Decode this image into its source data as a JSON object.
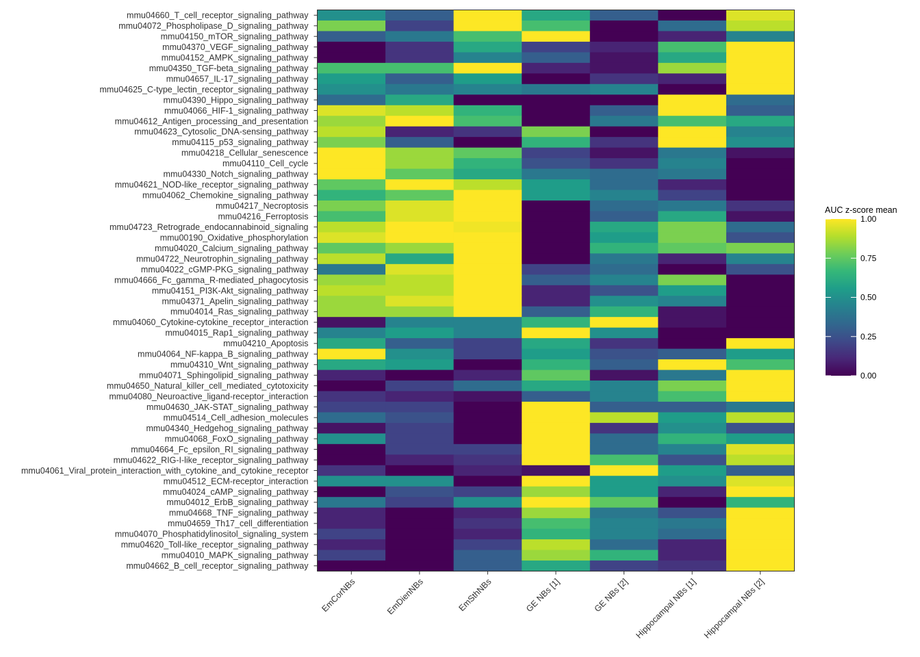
{
  "chart_data": {
    "type": "heatmap",
    "title": "",
    "xlabel": "",
    "ylabel": "",
    "columns": [
      "EmCorNBs",
      "EmDienNBs",
      "EmSthNBs",
      "GE NBs [1]",
      "GE NBs [2]",
      "Hippocampal NBs [1]",
      "Hippocampal NBs [2]"
    ],
    "rows": [
      "mmu04660_T_cell_receptor_signaling_pathway",
      "mmu04072_Phospholipase_D_signaling_pathway",
      "mmu04150_mTOR_signaling_pathway",
      "mmu04370_VEGF_signaling_pathway",
      "mmu04152_AMPK_signaling_pathway",
      "mmu04350_TGF-beta_signaling_pathway",
      "mmu04657_IL-17_signaling_pathway",
      "mmu04625_C-type_lectin_receptor_signaling_pathway",
      "mmu04390_Hippo_signaling_pathway",
      "mmu04066_HIF-1_signaling_pathway",
      "mmu04612_Antigen_processing_and_presentation",
      "mmu04623_Cytosolic_DNA-sensing_pathway",
      "mmu04115_p53_signaling_pathway",
      "mmu04218_Cellular_senescence",
      "mmu04110_Cell_cycle",
      "mmu04330_Notch_signaling_pathway",
      "mmu04621_NOD-like_receptor_signaling_pathway",
      "mmu04062_Chemokine_signaling_pathway",
      "mmu04217_Necroptosis",
      "mmu04216_Ferroptosis",
      "mmu04723_Retrograde_endocannabinoid_signaling",
      "mmu00190_Oxidative_phosphorylation",
      "mmu04020_Calcium_signaling_pathway",
      "mmu04722_Neurotrophin_signaling_pathway",
      "mmu04022_cGMP-PKG_signaling_pathway",
      "mmu04666_Fc_gamma_R-mediated_phagocytosis",
      "mmu04151_PI3K-Akt_signaling_pathway",
      "mmu04371_Apelin_signaling_pathway",
      "mmu04014_Ras_signaling_pathway",
      "mmu04060_Cytokine-cytokine_receptor_interaction",
      "mmu04015_Rap1_signaling_pathway",
      "mmu04210_Apoptosis",
      "mmu04064_NF-kappa_B_signaling_pathway",
      "mmu04310_Wnt_signaling_pathway",
      "mmu04071_Sphingolipid_signaling_pathway",
      "mmu04650_Natural_killer_cell_mediated_cytotoxicity",
      "mmu04080_Neuroactive_ligand-receptor_interaction",
      "mmu04630_JAK-STAT_signaling_pathway",
      "mmu04514_Cell_adhesion_molecules",
      "mmu04340_Hedgehog_signaling_pathway",
      "mmu04068_FoxO_signaling_pathway",
      "mmu04664_Fc_epsilon_RI_signaling_pathway",
      "mmu04622_RIG-I-like_receptor_signaling_pathway",
      "mmu04061_Viral_protein_interaction_with_cytokine_and_cytokine_receptor",
      "mmu04512_ECM-receptor_interaction",
      "mmu04024_cAMP_signaling_pathway",
      "mmu04012_ErbB_signaling_pathway",
      "mmu04668_TNF_signaling_pathway",
      "mmu04659_Th17_cell_differentiation",
      "mmu04070_Phosphatidylinositol_signaling_system",
      "mmu04620_Toll-like_receptor_signaling_pathway",
      "mmu04010_MAPK_signaling_pathway",
      "mmu04662_B_cell_receptor_signaling_pathway"
    ],
    "values": [
      [
        0.5,
        0.3,
        1.0,
        0.6,
        0.3,
        0.0,
        0.95
      ],
      [
        0.8,
        0.2,
        1.0,
        0.7,
        0.0,
        0.35,
        0.9
      ],
      [
        0.3,
        0.4,
        0.7,
        1.0,
        0.0,
        0.1,
        0.45
      ],
      [
        0.0,
        0.15,
        0.6,
        0.2,
        0.1,
        0.7,
        1.0
      ],
      [
        0.0,
        0.15,
        0.45,
        0.3,
        0.05,
        0.6,
        1.0
      ],
      [
        0.7,
        0.7,
        1.0,
        0.1,
        0.05,
        0.85,
        1.0
      ],
      [
        0.55,
        0.3,
        0.55,
        0.0,
        0.15,
        0.1,
        1.0
      ],
      [
        0.5,
        0.4,
        0.45,
        0.4,
        0.45,
        0.0,
        1.0
      ],
      [
        0.35,
        0.6,
        0.0,
        0.0,
        0.0,
        1.0,
        0.35
      ],
      [
        0.95,
        0.9,
        0.65,
        0.0,
        0.3,
        1.0,
        0.3
      ],
      [
        0.85,
        1.0,
        0.7,
        0.0,
        0.4,
        0.7,
        0.6
      ],
      [
        0.9,
        0.1,
        0.15,
        0.8,
        0.0,
        1.0,
        0.45
      ],
      [
        0.8,
        0.3,
        0.0,
        0.65,
        0.15,
        1.0,
        0.5
      ],
      [
        1.0,
        0.85,
        0.75,
        0.2,
        0.05,
        0.4,
        0.05
      ],
      [
        1.0,
        0.85,
        0.65,
        0.25,
        0.15,
        0.45,
        0.0
      ],
      [
        1.0,
        0.75,
        0.6,
        0.4,
        0.35,
        0.4,
        0.0
      ],
      [
        0.75,
        1.0,
        0.9,
        0.55,
        0.35,
        0.1,
        0.0
      ],
      [
        0.65,
        0.75,
        1.0,
        0.55,
        0.45,
        0.2,
        0.0
      ],
      [
        0.8,
        0.95,
        1.0,
        0.0,
        0.35,
        0.4,
        0.15
      ],
      [
        0.7,
        0.95,
        1.0,
        0.0,
        0.3,
        0.6,
        0.05
      ],
      [
        0.9,
        1.0,
        0.98,
        0.0,
        0.6,
        0.8,
        0.35
      ],
      [
        0.95,
        1.0,
        1.0,
        0.0,
        0.55,
        0.8,
        0.25
      ],
      [
        0.75,
        0.85,
        1.0,
        0.0,
        0.65,
        0.75,
        0.8
      ],
      [
        0.9,
        0.6,
        1.0,
        0.0,
        0.4,
        0.1,
        0.45
      ],
      [
        0.4,
        0.95,
        1.0,
        0.2,
        0.35,
        0.0,
        0.25
      ],
      [
        0.85,
        0.9,
        1.0,
        0.3,
        0.45,
        0.8,
        0.0
      ],
      [
        0.9,
        0.9,
        1.0,
        0.1,
        0.25,
        0.55,
        0.0
      ],
      [
        0.85,
        0.95,
        1.0,
        0.1,
        0.5,
        0.45,
        0.0
      ],
      [
        0.85,
        0.85,
        1.0,
        0.3,
        0.65,
        0.05,
        0.0
      ],
      [
        0.05,
        0.45,
        0.45,
        0.65,
        1.0,
        0.05,
        0.0
      ],
      [
        0.45,
        0.55,
        0.45,
        1.0,
        0.5,
        0.0,
        0.0
      ],
      [
        0.6,
        0.3,
        0.2,
        0.6,
        0.15,
        0.0,
        1.0
      ],
      [
        1.0,
        0.5,
        0.2,
        0.55,
        0.25,
        0.3,
        0.55
      ],
      [
        0.6,
        0.55,
        0.0,
        0.65,
        0.3,
        1.0,
        0.7
      ],
      [
        0.1,
        0.0,
        0.1,
        0.75,
        0.05,
        0.4,
        1.0
      ],
      [
        0.0,
        0.2,
        0.35,
        0.6,
        0.45,
        0.8,
        1.0
      ],
      [
        0.15,
        0.1,
        0.05,
        0.3,
        0.45,
        0.7,
        1.0
      ],
      [
        0.2,
        0.2,
        0.0,
        1.0,
        0.3,
        0.3,
        0.4
      ],
      [
        0.35,
        0.25,
        0.0,
        1.0,
        0.9,
        0.55,
        0.9
      ],
      [
        0.05,
        0.2,
        0.0,
        1.0,
        0.15,
        0.5,
        0.25
      ],
      [
        0.5,
        0.2,
        0.0,
        1.0,
        0.35,
        0.65,
        0.55
      ],
      [
        0.0,
        0.2,
        0.2,
        1.0,
        0.35,
        0.45,
        0.95
      ],
      [
        0.0,
        0.1,
        0.15,
        1.0,
        0.7,
        0.25,
        0.9
      ],
      [
        0.15,
        0.0,
        0.1,
        0.05,
        1.0,
        0.55,
        0.3
      ],
      [
        0.5,
        0.5,
        0.0,
        1.0,
        0.55,
        0.5,
        0.95
      ],
      [
        0.0,
        0.25,
        0.2,
        0.85,
        0.55,
        0.1,
        1.0
      ],
      [
        0.4,
        0.2,
        0.5,
        1.0,
        0.75,
        0.0,
        0.65
      ],
      [
        0.1,
        0.0,
        0.1,
        0.85,
        0.4,
        0.25,
        1.0
      ],
      [
        0.1,
        0.0,
        0.15,
        0.7,
        0.45,
        0.4,
        1.0
      ],
      [
        0.2,
        0.0,
        0.1,
        0.65,
        0.45,
        0.35,
        1.0
      ],
      [
        0.1,
        0.0,
        0.2,
        0.9,
        0.35,
        0.1,
        1.0
      ],
      [
        0.2,
        0.0,
        0.3,
        0.85,
        0.65,
        0.1,
        1.0
      ],
      [
        0.0,
        0.0,
        0.3,
        0.6,
        0.2,
        0.15,
        1.0
      ]
    ],
    "legend": {
      "title": "AUC z-score mean",
      "ticks": [
        "0.00",
        "0.25",
        "0.50",
        "0.75",
        "1.00"
      ],
      "range": [
        0,
        1
      ],
      "colormap": "viridis",
      "position": "right"
    },
    "colors": [
      "#440154",
      "#482878",
      "#3E4A89",
      "#31688E",
      "#26828E",
      "#1F9E89",
      "#35B779",
      "#6DCD59",
      "#B4DE2C",
      "#FDE725"
    ],
    "panel_border": "#333333",
    "grid": false
  }
}
